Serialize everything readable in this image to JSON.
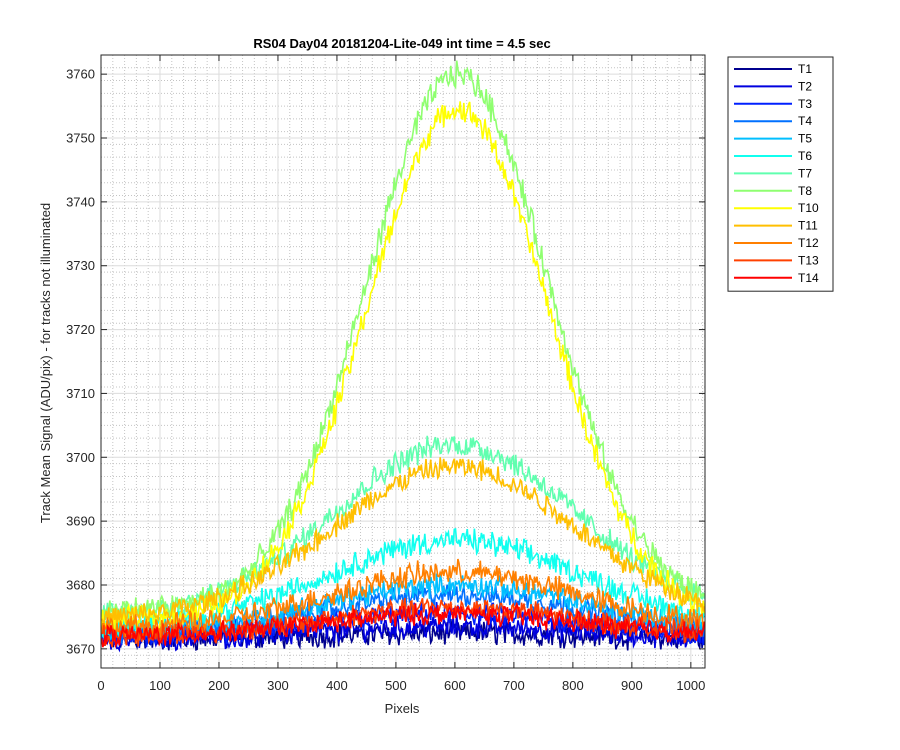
{
  "chart_data": {
    "type": "line",
    "title": "RS04 Day04 20181204-Lite-049 int time = 4.5 sec",
    "xlabel": "Pixels",
    "ylabel": "Track Mean Signal (ADU/pix) - for tracks not illuminated",
    "xlim": [
      0,
      1024
    ],
    "ylim": [
      3667,
      3763
    ],
    "xticks": [
      0,
      100,
      200,
      300,
      400,
      500,
      600,
      700,
      800,
      900,
      1000
    ],
    "yticks": [
      3670,
      3680,
      3690,
      3700,
      3710,
      3720,
      3730,
      3740,
      3750,
      3760
    ],
    "grid": "major and minor",
    "legend_position": "outside-top-right",
    "series": [
      {
        "name": "T1",
        "color": "#00008F",
        "base": 3671.5,
        "peak": 3672.5,
        "center": 600,
        "width": 300,
        "noise": 1.6
      },
      {
        "name": "T2",
        "color": "#0000DF",
        "base": 3671.5,
        "peak": 3673.5,
        "center": 600,
        "width": 300,
        "noise": 1.5
      },
      {
        "name": "T3",
        "color": "#0020FF",
        "base": 3672.0,
        "peak": 3675.5,
        "center": 600,
        "width": 300,
        "noise": 1.5
      },
      {
        "name": "T4",
        "color": "#0070FF",
        "base": 3672.5,
        "peak": 3678.5,
        "center": 600,
        "width": 300,
        "noise": 1.5
      },
      {
        "name": "T5",
        "color": "#00BFFF",
        "base": 3673.0,
        "peak": 3680.0,
        "center": 600,
        "width": 300,
        "noise": 1.5
      },
      {
        "name": "T6",
        "color": "#10FFEF",
        "base": 3673.5,
        "peak": 3687.0,
        "center": 600,
        "width": 300,
        "noise": 1.6
      },
      {
        "name": "T7",
        "color": "#60FFAF",
        "base": 3675.0,
        "peak": 3702.0,
        "center": 600,
        "width": 290,
        "noise": 1.6
      },
      {
        "name": "T8",
        "color": "#8FFF70",
        "base": 3676.0,
        "peak": 3760.0,
        "center": 605,
        "width": 220,
        "noise": 1.7
      },
      {
        "name": "T10",
        "color": "#FFFF00",
        "base": 3674.5,
        "peak": 3754.5,
        "center": 605,
        "width": 220,
        "noise": 1.6
      },
      {
        "name": "T11",
        "color": "#FFBF00",
        "base": 3674.5,
        "peak": 3698.5,
        "center": 600,
        "width": 290,
        "noise": 1.5
      },
      {
        "name": "T12",
        "color": "#FF7F00",
        "base": 3673.0,
        "peak": 3682.0,
        "center": 600,
        "width": 300,
        "noise": 1.6
      },
      {
        "name": "T13",
        "color": "#FF4000",
        "base": 3672.0,
        "peak": 3676.5,
        "center": 600,
        "width": 300,
        "noise": 1.4
      },
      {
        "name": "T14",
        "color": "#FF0000",
        "base": 3672.0,
        "peak": 3675.5,
        "center": 600,
        "width": 300,
        "noise": 1.4
      }
    ]
  }
}
